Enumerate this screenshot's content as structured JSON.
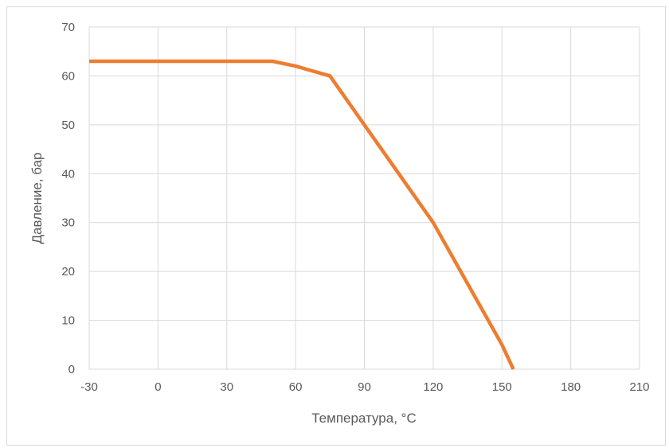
{
  "chart_data": {
    "type": "line",
    "xlabel": "Температура, °C",
    "ylabel": "Давление, бар",
    "xlim": [
      -30,
      210
    ],
    "ylim": [
      0,
      70
    ],
    "x_ticks": [
      -30,
      0,
      30,
      60,
      90,
      120,
      150,
      180,
      210
    ],
    "y_ticks": [
      0,
      10,
      20,
      30,
      40,
      50,
      60,
      70
    ],
    "grid": true,
    "legend": "none",
    "series": [
      {
        "color": "#ED7D31",
        "points": [
          {
            "x": -30,
            "y": 63
          },
          {
            "x": 50,
            "y": 63
          },
          {
            "x": 60,
            "y": 62
          },
          {
            "x": 75,
            "y": 60
          },
          {
            "x": 90,
            "y": 50
          },
          {
            "x": 120,
            "y": 30
          },
          {
            "x": 150,
            "y": 5
          },
          {
            "x": 155,
            "y": 0
          }
        ]
      }
    ]
  }
}
